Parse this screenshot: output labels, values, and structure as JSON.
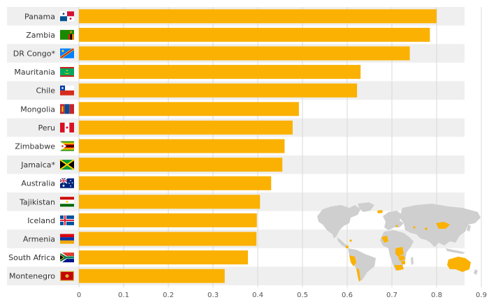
{
  "chart_data": {
    "type": "bar",
    "orientation": "horizontal",
    "categories": [
      "Panama",
      "Zambia",
      "DR Congo*",
      "Mauritania",
      "Chile",
      "Mongolia",
      "Peru",
      "Zimbabwe",
      "Jamaica*",
      "Australia",
      "Tajikistan",
      "Iceland",
      "Armenia",
      "South Africa",
      "Montenegro"
    ],
    "values": [
      0.8,
      0.785,
      0.74,
      0.63,
      0.622,
      0.492,
      0.478,
      0.46,
      0.455,
      0.43,
      0.405,
      0.398,
      0.397,
      0.378,
      0.326
    ],
    "xlim": [
      0,
      0.9
    ],
    "xticks": [
      0,
      0.1,
      0.2,
      0.3,
      0.4,
      0.5,
      0.6,
      0.7,
      0.8,
      0.9
    ],
    "grid": true,
    "legend": "none",
    "colors": {
      "bar": "#FBB101",
      "row_band": "#EFEFEF",
      "grid": "#D9D9D9",
      "map_land": "#CFCFCF",
      "map_highlight": "#FBB101"
    },
    "flag_icons": [
      "panama-flag-icon",
      "zambia-flag-icon",
      "dr-congo-flag-icon",
      "mauritania-flag-icon",
      "chile-flag-icon",
      "mongolia-flag-icon",
      "peru-flag-icon",
      "zimbabwe-flag-icon",
      "jamaica-flag-icon",
      "australia-flag-icon",
      "tajikistan-flag-icon",
      "iceland-flag-icon",
      "armenia-flag-icon",
      "south-africa-flag-icon",
      "montenegro-flag-icon"
    ]
  }
}
